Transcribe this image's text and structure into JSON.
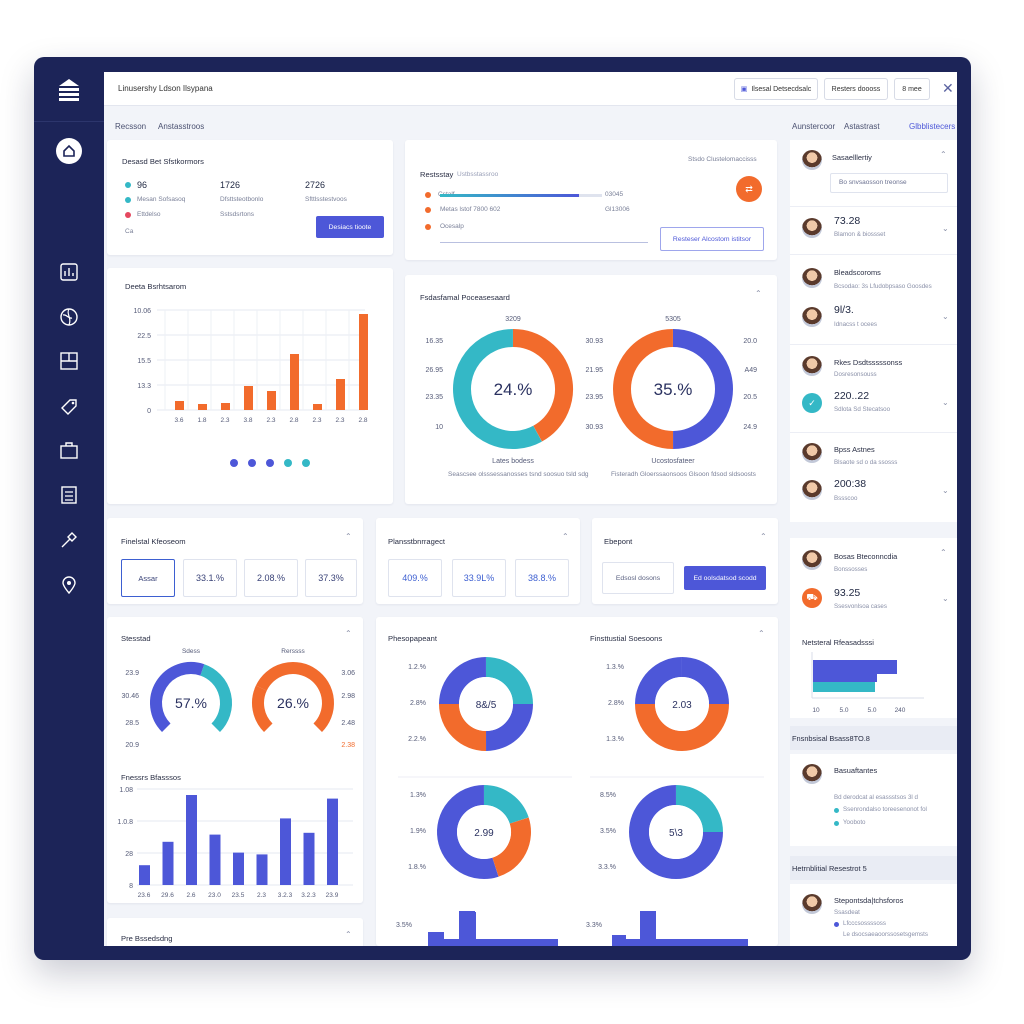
{
  "topbar": {
    "title": "Linusershy Ldson Ilsypana",
    "btn1": "Ilsesal Detsecdsalc",
    "btn2": "Resters doooss",
    "btn3": "8 mee"
  },
  "subheader": {
    "left1": "Recsson",
    "left2": "Anstasstroos",
    "right1": "Aunstercoor",
    "right2": "Astastrast",
    "right3": "Glbblistecers"
  },
  "stats": {
    "title": "Desasd Bet Sfstkormors",
    "v1": "96",
    "v2": "1726",
    "v3": "2726",
    "l1": "Mesan Sofsasoq",
    "l2": "Dfsttsteotbonlo",
    "l3": "Sfttlsstestvoos",
    "l4": "Ettdelso",
    "l5": "Sstsdsrtons",
    "l6": "Ca",
    "button": "Desiacs tioote",
    "colors": {
      "teal": "#34b8c6",
      "blue": "#4d57d8",
      "orange": "#f26b2c",
      "pink": "#e5485f"
    }
  },
  "progress": {
    "title": "Restsstay",
    "title2": "Ustbsstassroo",
    "hint": "Stsdo Clustelomaccisss",
    "r1": "Cstalf",
    "r2": "Metas lstof 7800 602",
    "r3": "Ocesalp",
    "v1": "03045",
    "v2": "Gl13006",
    "button": "Resteser Alcostom istitsor",
    "fill": 0.86
  },
  "bar1": {
    "title": "Deeta Bsrhtsarom",
    "ticks": [
      "10.06",
      "22.5",
      "15.5",
      "13.3",
      "0"
    ],
    "dots": [
      "#4d57d8",
      "#4d57d8",
      "#4d57d8",
      "#34b8c6",
      "#34b8c6"
    ]
  },
  "donuts": {
    "title": "Fsdasfamal Poceasesaard",
    "a": {
      "top": "3209",
      "center": "24.%",
      "left": [
        "16.35",
        "26.95",
        "23.35",
        "10"
      ],
      "right": [
        "30.93",
        "21.95",
        "23.95",
        "30.93"
      ],
      "caption": "Lates bodess"
    },
    "b": {
      "top": "5305",
      "center": "35.%",
      "left": [],
      "right": [
        "20.0",
        "A49",
        "20.5",
        "24.9"
      ],
      "caption": "Ucostosfateer"
    },
    "footer1": "Seascsee olsssessanosses tsnd soosuo tsld sdg",
    "footer2": "Fisteradh Gloerssaonsoos Glsoon fdsod sldsoosts"
  },
  "kpi1": {
    "title": "Finelstal Kfeoseom",
    "b1": "Assar",
    "b2": "33.1.%",
    "b3": "2.08.%",
    "b4": "37.3%"
  },
  "kpi2": {
    "title": "Plansstbnrragect",
    "b1": "409.%",
    "b2": "33.9L%",
    "b3": "38.8.%"
  },
  "kpi3": {
    "title": "Ebepont",
    "b1": "Edsosl dosons",
    "b2": "Ed oolsdatsod scodd"
  },
  "gauges": {
    "title": "Stesstad",
    "g1": {
      "top": "Sdess",
      "center": "57.%",
      "value": 0.57,
      "left": [
        "23.9",
        "30.46",
        "28.5",
        "20.9"
      ]
    },
    "g2": {
      "top": "Rerssss",
      "center": "26.%",
      "value": 0.26,
      "right": [
        "3.06",
        "2.98",
        "2.48",
        "2.38"
      ]
    }
  },
  "bar2": {
    "title": "Fnessrs Bfasssos",
    "ticks": [
      "1.08",
      "1.0.8",
      "28",
      "8"
    ],
    "xticks": [
      "23.6",
      "29.6",
      "2.6",
      "23.0",
      "23.5",
      "2.3",
      "3.2.3",
      "3.2.3",
      "23.9"
    ],
    "values": [
      0.22,
      0.48,
      1.0,
      0.56,
      0.36,
      0.34,
      0.74,
      0.58,
      0.96
    ]
  },
  "pies": {
    "title1": "Phesopapeant",
    "title2": "Finsttustial Soesoons",
    "p1": {
      "center": "8&/5",
      "left": [
        "1.2.%",
        "2.8%",
        "2.2.%"
      ]
    },
    "p2": {
      "center": "2.03",
      "left": [
        "1.3.%",
        "2.8%",
        "1.3.%"
      ]
    },
    "p3": {
      "center": "2.99",
      "left": [
        "1.3%",
        "1.9%",
        "1.8.%"
      ]
    },
    "p4": {
      "center": "5\\3",
      "left": [
        "8.5%",
        "3.5%",
        "3.3.%"
      ]
    },
    "bottom1": "3.5%",
    "bottom2": "3.3%"
  },
  "pb": {
    "title": "Pre Bssedsdng"
  },
  "right": {
    "u1": {
      "name": "Sasaelllertiy",
      "input": "Bo snvsaosson treonse"
    },
    "u2": {
      "val": "73.28",
      "sub": "Blamon & biossset"
    },
    "u3": {
      "name": "Bleadscoroms",
      "sub": "Bcsodao: 3s Lfudobpsaso Goosdes"
    },
    "u4": {
      "val": "9l/3.",
      "sub": "Idnacss t ocees"
    },
    "u5": {
      "name": "Rkes Dsdtsssssonss",
      "sub": "Dosresonsouss"
    },
    "u6": {
      "val": "220..22",
      "sub": "Sdlota Sd Stecatsoo"
    },
    "u7": {
      "name": "Bpss Astnes",
      "sub": "Blsaote sd o da ssosss"
    },
    "u8": {
      "val": "200:38",
      "sub": "Bssscoo"
    },
    "u9": {
      "name": "Bosas Bteconncdia",
      "sub": "Bonssosses"
    },
    "u10": {
      "val": "93.25",
      "sub": "Ssesvonlsoa cases"
    },
    "mini": {
      "title": "Netsteral Rfeasadsssi",
      "x": [
        "10",
        "5.0",
        "5.0",
        "240"
      ]
    },
    "sec1": "Fnsnbsisal Bsass8TO.8",
    "u11": {
      "name": "Basuaftantes",
      "sub": "Bd derodcat al esassstsos 3l d",
      "l1": "Ssenrondalso toreesenonot fol",
      "l2": "Yooboto"
    },
    "sec2": "Hetrnblitial Resestrot 5",
    "u12": {
      "name": "Stepontsda|tchsforos",
      "sub": "Ssasdeat",
      "l1": "Lfcccsossssoss",
      "l2": "Le dsocsaeaoorssosetsgemsts"
    }
  },
  "icons": [
    "logo-icon",
    "home-icon",
    "chart-icon",
    "globe-icon",
    "board-icon",
    "tag-icon",
    "box-icon",
    "list-icon",
    "tools-icon",
    "location-icon",
    "close-icon",
    "filter-icon"
  ]
}
